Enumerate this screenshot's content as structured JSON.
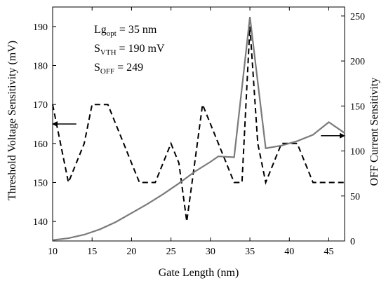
{
  "chart_data": {
    "type": "line",
    "title": "",
    "xlabel": "Gate Length (nm)",
    "ylabel_left": "Threshold Voltage Sensitivity (mV)",
    "ylabel_right": "OFF Current Sensitivity",
    "xlim": [
      10,
      47
    ],
    "ylim_left": [
      135,
      195
    ],
    "ylim_right": [
      0,
      260
    ],
    "x_ticks": [
      10,
      15,
      20,
      25,
      30,
      35,
      40,
      45
    ],
    "y_left_ticks": [
      140,
      150,
      160,
      170,
      180,
      190
    ],
    "y_right_ticks": [
      0,
      50,
      100,
      150,
      200,
      250
    ],
    "grid": false,
    "annotations": {
      "line1_main": "Lg",
      "line1_sub": "opt",
      "line1_rest": " = 35 nm",
      "line2_main": "S",
      "line2_sub": "VTH",
      "line2_rest": " = 190 mV",
      "line3_main": "S",
      "line3_sub": "OFF",
      "line3_rest": " = 249"
    },
    "series": [
      {
        "axis": "left",
        "style": "dashed",
        "color": "#000000",
        "x": [
          10,
          11,
          12,
          13,
          14,
          15,
          16,
          17,
          18,
          19,
          20,
          21,
          22,
          23,
          24,
          25,
          26,
          27,
          28,
          29,
          30,
          31,
          32,
          33,
          34,
          35,
          36,
          37,
          38,
          39,
          40,
          41,
          42,
          43,
          44,
          45,
          46,
          47
        ],
        "values": [
          170,
          160,
          150,
          155,
          160,
          170,
          170,
          170,
          165,
          160,
          155,
          150,
          150,
          150,
          155,
          160,
          155,
          140,
          155,
          170,
          165,
          160,
          155,
          150,
          150,
          190,
          160,
          150,
          155,
          160,
          160,
          160,
          155,
          150,
          150,
          150,
          150,
          150
        ]
      },
      {
        "axis": "right",
        "style": "solid",
        "color": "#7a7a7a",
        "x": [
          10,
          12,
          14,
          16,
          18,
          20,
          22,
          24,
          26,
          28,
          30,
          31,
          33,
          35,
          37,
          39,
          41,
          43,
          45,
          47
        ],
        "values": [
          1,
          3,
          7,
          13,
          21,
          31,
          41,
          52,
          64,
          77,
          88,
          94,
          93,
          249,
          103,
          106,
          111,
          118,
          132,
          120
        ]
      }
    ],
    "arrows": [
      {
        "axis": "left",
        "direction": "left",
        "x_from": 13,
        "x_to": 10,
        "y": 165
      },
      {
        "axis": "right",
        "direction": "right",
        "x_from": 44,
        "x_to": 47,
        "y": 117
      }
    ]
  }
}
